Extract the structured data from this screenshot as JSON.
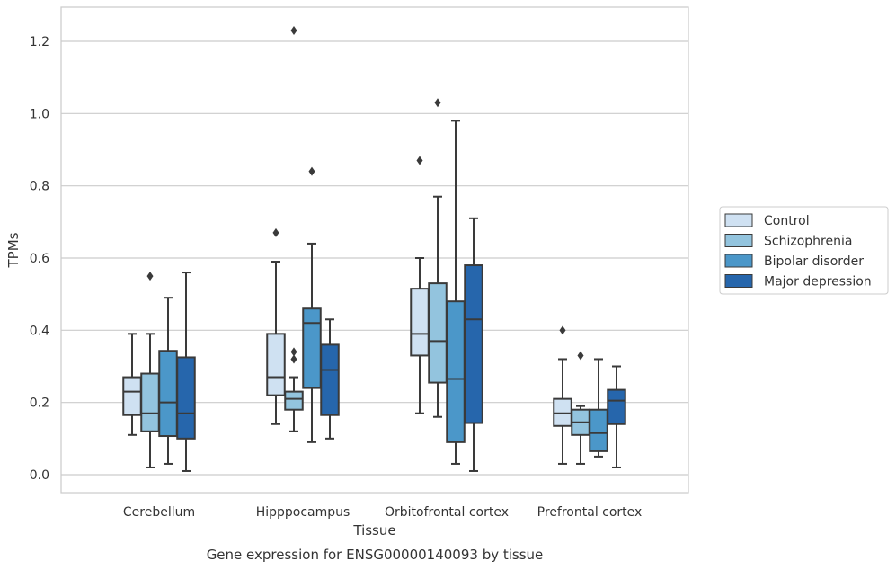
{
  "chart_data": {
    "type": "box",
    "title": "",
    "caption": "Gene expression for ENSG00000140093 by tissue",
    "xlabel": "Tissue",
    "ylabel": "TPMs",
    "ylim": [
      -0.05,
      1.29
    ],
    "yticks": [
      0.0,
      0.2,
      0.4,
      0.6,
      0.8,
      1.0,
      1.2
    ],
    "ytick_labels": [
      "0.0",
      "0.2",
      "0.4",
      "0.6",
      "0.8",
      "1.0",
      "1.2"
    ],
    "grid": "horizontal",
    "legend_position": "right",
    "categories": [
      "Cerebellum",
      "Hipppocampus",
      "Orbitofrontal cortex",
      "Prefrontal cortex"
    ],
    "series": [
      {
        "name": "Control",
        "color": "#cfe1f2",
        "boxes": [
          {
            "whislo": 0.11,
            "q1": 0.165,
            "med": 0.23,
            "q3": 0.27,
            "whishi": 0.39,
            "fliers": []
          },
          {
            "whislo": 0.14,
            "q1": 0.22,
            "med": 0.27,
            "q3": 0.39,
            "whishi": 0.59,
            "fliers": [
              0.67
            ]
          },
          {
            "whislo": 0.17,
            "q1": 0.33,
            "med": 0.39,
            "q3": 0.515,
            "whishi": 0.6,
            "fliers": [
              0.87
            ]
          },
          {
            "whislo": 0.03,
            "q1": 0.135,
            "med": 0.17,
            "q3": 0.21,
            "whishi": 0.32,
            "fliers": [
              0.4
            ]
          }
        ]
      },
      {
        "name": "Schizophrenia",
        "color": "#93c4de",
        "boxes": [
          {
            "whislo": 0.02,
            "q1": 0.12,
            "med": 0.17,
            "q3": 0.28,
            "whishi": 0.39,
            "fliers": [
              0.55
            ]
          },
          {
            "whislo": 0.12,
            "q1": 0.18,
            "med": 0.21,
            "q3": 0.23,
            "whishi": 0.27,
            "fliers": [
              0.32,
              0.34,
              1.23
            ]
          },
          {
            "whislo": 0.16,
            "q1": 0.255,
            "med": 0.37,
            "q3": 0.53,
            "whishi": 0.77,
            "fliers": [
              1.03
            ]
          },
          {
            "whislo": 0.03,
            "q1": 0.11,
            "med": 0.145,
            "q3": 0.18,
            "whishi": 0.19,
            "fliers": [
              0.33
            ]
          }
        ]
      },
      {
        "name": "Bipolar disorder",
        "color": "#4b97c9",
        "boxes": [
          {
            "whislo": 0.03,
            "q1": 0.107,
            "med": 0.2,
            "q3": 0.343,
            "whishi": 0.49,
            "fliers": []
          },
          {
            "whislo": 0.09,
            "q1": 0.24,
            "med": 0.42,
            "q3": 0.46,
            "whishi": 0.64,
            "fliers": [
              0.84
            ]
          },
          {
            "whislo": 0.03,
            "q1": 0.09,
            "med": 0.265,
            "q3": 0.48,
            "whishi": 0.98,
            "fliers": []
          },
          {
            "whislo": 0.05,
            "q1": 0.065,
            "med": 0.115,
            "q3": 0.18,
            "whishi": 0.32,
            "fliers": []
          }
        ]
      },
      {
        "name": "Major depression",
        "color": "#2666ac",
        "boxes": [
          {
            "whislo": 0.01,
            "q1": 0.1,
            "med": 0.17,
            "q3": 0.325,
            "whishi": 0.56,
            "fliers": []
          },
          {
            "whislo": 0.1,
            "q1": 0.165,
            "med": 0.29,
            "q3": 0.36,
            "whishi": 0.43,
            "fliers": []
          },
          {
            "whislo": 0.01,
            "q1": 0.143,
            "med": 0.43,
            "q3": 0.58,
            "whishi": 0.71,
            "fliers": []
          },
          {
            "whislo": 0.02,
            "q1": 0.14,
            "med": 0.205,
            "q3": 0.235,
            "whishi": 0.3,
            "fliers": []
          }
        ]
      }
    ]
  }
}
